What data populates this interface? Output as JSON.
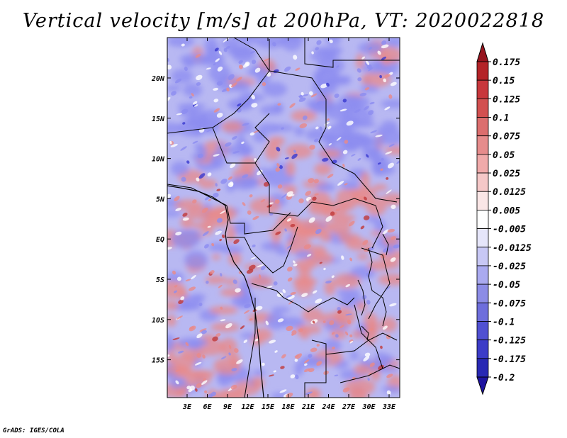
{
  "title": "Vertical velocity [m/s] at 200hPa, VT: 2020022818",
  "credit": "GrADS: IGES/COLA",
  "lat_labels": [
    "20N",
    "15N",
    "10N",
    "5N",
    "EQ",
    "5S",
    "10S",
    "15S"
  ],
  "lon_labels": [
    "3E",
    "6E",
    "9E",
    "12E",
    "15E",
    "18E",
    "21E",
    "24E",
    "27E",
    "30E",
    "33E"
  ],
  "colorbar": {
    "labels": [
      "0.175",
      "0.15",
      "0.125",
      "0.1",
      "0.075",
      "0.05",
      "0.025",
      "0.0125",
      "0.005",
      "-0.005",
      "-0.0125",
      "-0.025",
      "-0.05",
      "-0.075",
      "-0.1",
      "-0.125",
      "-0.175",
      "-0.2"
    ],
    "colors": [
      "#96141e",
      "#b42328",
      "#c8373c",
      "#d25050",
      "#dc6e6e",
      "#e68c8c",
      "#f0aaaa",
      "#f5c8c8",
      "#fae6e6",
      "#ffffff",
      "#e6e6fa",
      "#c8c8f5",
      "#aaaaf0",
      "#8c8ce6",
      "#6e6edc",
      "#5050d2",
      "#3c3cc8",
      "#2828b4",
      "#1e14a0"
    ]
  },
  "map": {
    "field_colors": {
      "positive": "#e88a8a",
      "negative": "#8c8cf0",
      "strong_positive": "#c03a3a",
      "strong_negative": "#3a3ad0"
    }
  }
}
